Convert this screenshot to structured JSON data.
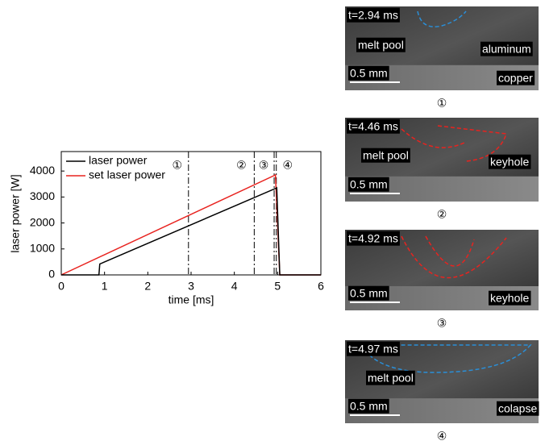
{
  "chart_data": {
    "type": "line",
    "xlabel": "time [ms]",
    "ylabel": "laser power [W]",
    "series": [
      {
        "name": "laser power",
        "color": "#000000",
        "x": [
          0,
          0.82,
          0.87,
          0.89,
          4.98,
          5.05,
          6
        ],
        "values": [
          0,
          0,
          0,
          420,
          3350,
          0,
          0
        ]
      },
      {
        "name": "set laser power",
        "color": "#e8231f",
        "x": [
          0,
          4.95,
          5.05,
          6
        ],
        "values": [
          0,
          3850,
          0,
          0
        ]
      }
    ],
    "markers": [
      {
        "x": 2.94,
        "label": "①"
      },
      {
        "x": 4.46,
        "label": "②"
      },
      {
        "x": 4.92,
        "label": "③"
      },
      {
        "x": 4.97,
        "label": "④"
      }
    ],
    "xlim": [
      0,
      6
    ],
    "xticks": [
      0,
      1,
      2,
      3,
      4,
      5,
      6
    ],
    "ylim": [
      0,
      4750
    ],
    "yticks": [
      0,
      1000,
      2000,
      3000,
      4000
    ],
    "legend": "upper-left"
  },
  "panels": [
    {
      "time": "t=2.94 ms",
      "labels": [
        "melt pool",
        "aluminum",
        "copper"
      ],
      "scale": "0.5 mm",
      "caption": "①"
    },
    {
      "time": "t=4.46 ms",
      "labels": [
        "melt pool",
        "keyhole"
      ],
      "scale": "0.5 mm",
      "caption": "②"
    },
    {
      "time": "t=4.92 ms",
      "labels": [
        "keyhole"
      ],
      "scale": "0.5 mm",
      "caption": "③"
    },
    {
      "time": "t=4.97 ms",
      "labels": [
        "melt pool",
        "colapse"
      ],
      "scale": "0.5 mm",
      "caption": "④"
    }
  ]
}
